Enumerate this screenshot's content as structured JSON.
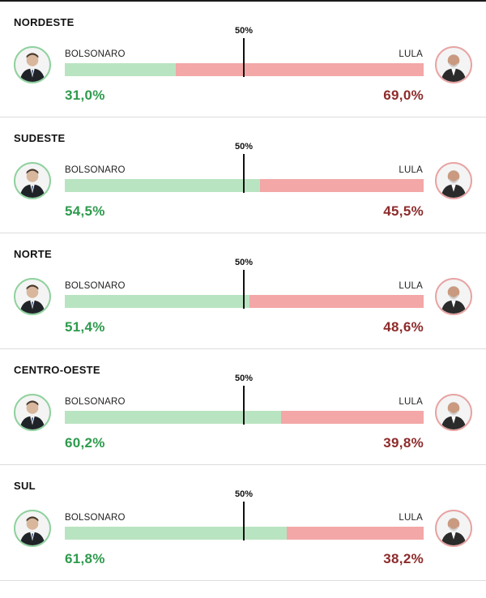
{
  "half_label": "50%",
  "colors": {
    "left_bar": "#b9e4c1",
    "right_bar": "#f3a7a7",
    "left_text": "#2e9a4d",
    "right_text": "#8e2b2b"
  },
  "regions": [
    {
      "name": "NORDESTE",
      "left_name": "BOLSONARO",
      "right_name": "LULA",
      "left_pct": "31,0%",
      "right_pct": "69,0%",
      "left_value": 31.0
    },
    {
      "name": "SUDESTE",
      "left_name": "BOLSONARO",
      "right_name": "LULA",
      "left_pct": "54,5%",
      "right_pct": "45,5%",
      "left_value": 54.5
    },
    {
      "name": "NORTE",
      "left_name": "BOLSONARO",
      "right_name": "LULA",
      "left_pct": "51,4%",
      "right_pct": "48,6%",
      "left_value": 51.4
    },
    {
      "name": "CENTRO-OESTE",
      "left_name": "BOLSONARO",
      "right_name": "LULA",
      "left_pct": "60,2%",
      "right_pct": "39,8%",
      "left_value": 60.2
    },
    {
      "name": "SUL",
      "left_name": "BOLSONARO",
      "right_name": "LULA",
      "left_pct": "61,8%",
      "right_pct": "38,2%",
      "left_value": 61.8
    }
  ]
}
